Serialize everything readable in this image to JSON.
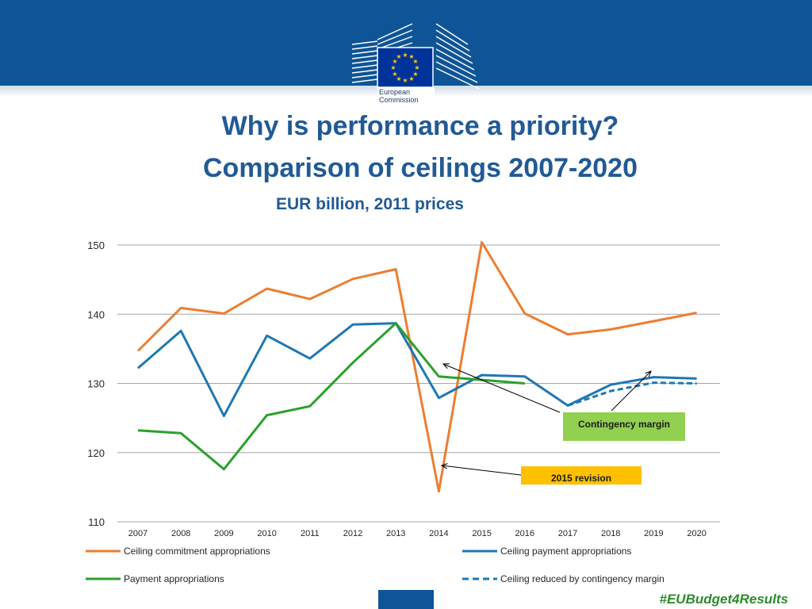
{
  "header": {
    "logo_text_line1": "European",
    "logo_text_line2": "Commission",
    "title_line1": "Why is performance a priority?",
    "title_line2": "Comparison of ceilings 2007-2020",
    "subtitle": "EUR billion, 2011 prices"
  },
  "footer": {
    "hashtag": "#EUBudget4Results"
  },
  "colors": {
    "brand_blue": "#0f5496",
    "title_blue": "#215a96",
    "orange": "#ed7d31",
    "blue": "#1f77b4",
    "green": "#2ca02c"
  },
  "chart_data": {
    "type": "line",
    "ylim": [
      110,
      150
    ],
    "yticks": [
      110,
      120,
      130,
      140,
      150
    ],
    "categories": [
      "2007",
      "2008",
      "2009",
      "2010",
      "2011",
      "2012",
      "2013",
      "2014",
      "2015",
      "2016",
      "2017",
      "2018",
      "2019",
      "2020"
    ],
    "series": [
      {
        "name": "Ceiling commitment appropriations",
        "color": "#ed7d31",
        "dash": false,
        "values": [
          134.7,
          140.9,
          140.1,
          143.7,
          142.2,
          145.1,
          146.5,
          114.4,
          150.4,
          140.1,
          137.1,
          137.8,
          139.0,
          140.2
        ]
      },
      {
        "name": "Ceiling payment appropriations",
        "color": "#1f77b4",
        "dash": false,
        "values": [
          132.2,
          137.6,
          125.3,
          136.9,
          133.6,
          138.5,
          138.7,
          127.9,
          131.2,
          131.0,
          126.8,
          129.8,
          130.9,
          130.7
        ]
      },
      {
        "name": "Payment appropriations",
        "color": "#2ca02c",
        "dash": false,
        "values": [
          123.2,
          122.8,
          117.6,
          125.4,
          126.7,
          133.0,
          138.7,
          131.0,
          130.5,
          130.0,
          null,
          null,
          null,
          null
        ]
      },
      {
        "name": "Ceiling reduced by contingency margin",
        "color": "#1f77b4",
        "dash": true,
        "values": [
          null,
          null,
          null,
          null,
          null,
          null,
          null,
          null,
          null,
          null,
          126.8,
          128.9,
          130.1,
          130.0
        ]
      }
    ],
    "annotations": [
      {
        "text": "Contingency margin",
        "style": "green-box"
      },
      {
        "text": "2015 revision",
        "style": "yellow-box"
      }
    ]
  }
}
